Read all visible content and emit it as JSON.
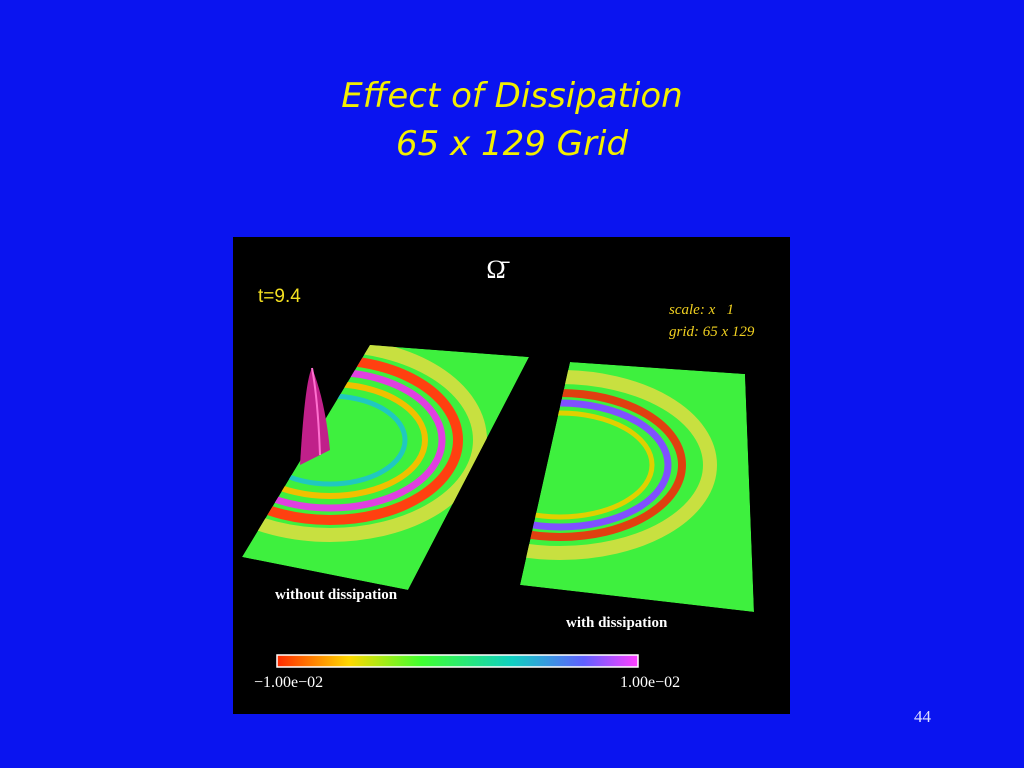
{
  "slide": {
    "title": [
      "Effect of Dissipation",
      "65 x 129 Grid"
    ],
    "figure": {
      "symbol": "Ω̄",
      "time": "t=9.4",
      "scale": "scale: x   1",
      "grid": "grid: 65 x 129",
      "left_label": "without dissipation",
      "right_label": "with dissipation",
      "colorbar_min": "−1.00e−02",
      "colorbar_max": "1.00e−02"
    },
    "page_number": "44"
  }
}
